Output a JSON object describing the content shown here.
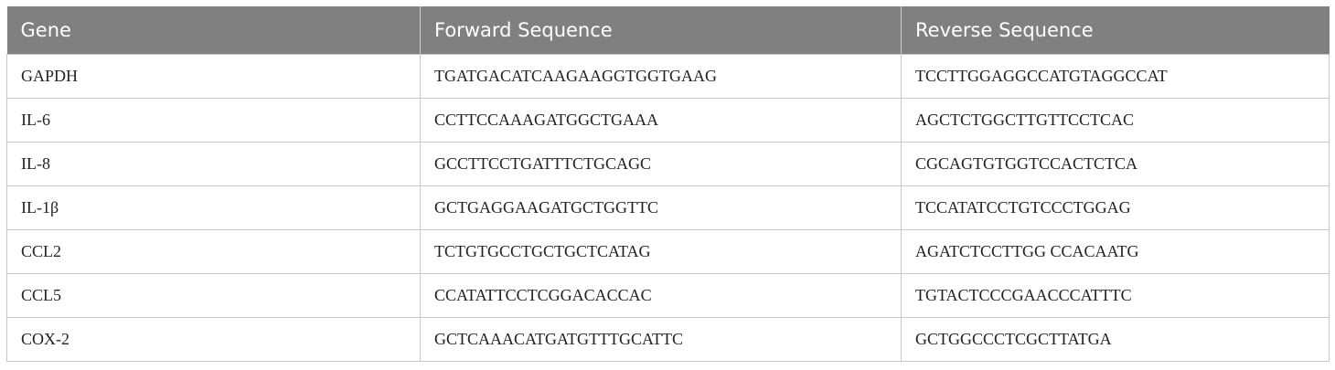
{
  "table": {
    "headers": [
      "Gene",
      "Forward Sequence",
      "Reverse Sequence"
    ],
    "rows": [
      [
        "GAPDH",
        "TGATGACATCAAGAAGGTGGTGAAG",
        "TCCTTGGAGGCCATGTAGGCCAT"
      ],
      [
        "IL-6",
        "CCTTCCAAAGATGGCTGAAA",
        "AGCTCTGGCTTGTTCCTCAC"
      ],
      [
        "IL-8",
        "GCCTTCCTGATTTCTGCAGC",
        "CGCAGTGTGGTCCACTCTCA"
      ],
      [
        "IL-1β",
        "GCTGAGGAAGATGCTGGTTC",
        "TCCATATCCTGTCCCTGGAG"
      ],
      [
        "CCL2",
        "TCTGTGCCTGCTGCTCATAG",
        "AGATCTCCTTGG CCACAATG"
      ],
      [
        "CCL5",
        "CCATATTCCTCGGACACCAC",
        "TGTACTCCCGAACCCATTTC"
      ],
      [
        "COX-2",
        "GCTCAAACATGATGTTTGCATTC",
        "GCTGGCCCTCGCTTATGA"
      ]
    ]
  },
  "colors": {
    "header_bg": "#808080",
    "header_text": "#ffffff",
    "grid": "#c8c8c8"
  }
}
